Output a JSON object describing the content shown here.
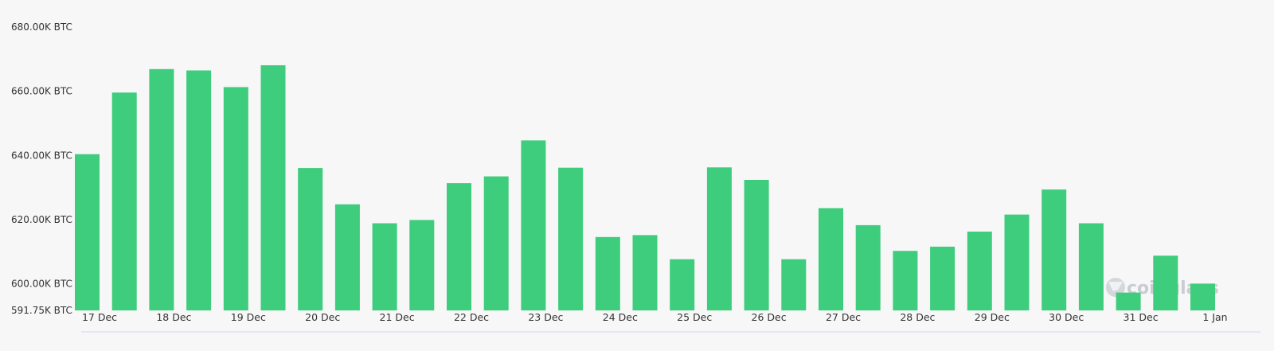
{
  "chart_data": {
    "type": "bar",
    "title": "",
    "xlabel": "",
    "ylabel": "",
    "unit": "BTC",
    "ylim": [
      591.75,
      680.0
    ],
    "y_ticks": [
      {
        "value": 680.0,
        "label": "680.00K BTC"
      },
      {
        "value": 660.0,
        "label": "660.00K BTC"
      },
      {
        "value": 640.0,
        "label": "640.00K BTC"
      },
      {
        "value": 620.0,
        "label": "620.00K BTC"
      },
      {
        "value": 600.0,
        "label": "600.00K BTC"
      },
      {
        "value": 591.75,
        "label": "591.75K BTC"
      }
    ],
    "x_tick_labels": [
      "17 Dec",
      "18 Dec",
      "19 Dec",
      "20 Dec",
      "21 Dec",
      "22 Dec",
      "23 Dec",
      "24 Dec",
      "25 Dec",
      "26 Dec",
      "27 Dec",
      "28 Dec",
      "29 Dec",
      "30 Dec",
      "31 Dec",
      "1 Jan"
    ],
    "grid": false,
    "series": [
      {
        "color": "#3ecd7c",
        "values": [
          640.4,
          659.6,
          666.9,
          666.5,
          661.3,
          668.1,
          636.1,
          624.8,
          618.9,
          619.9,
          631.4,
          633.5,
          644.7,
          636.2,
          614.6,
          615.2,
          607.7,
          636.3,
          632.4,
          607.7,
          623.6,
          618.3,
          610.3,
          611.6,
          616.3,
          621.6,
          629.4,
          618.9,
          597.3,
          608.8,
          600.1
        ]
      }
    ]
  },
  "watermark": {
    "text": "coinglass"
  }
}
